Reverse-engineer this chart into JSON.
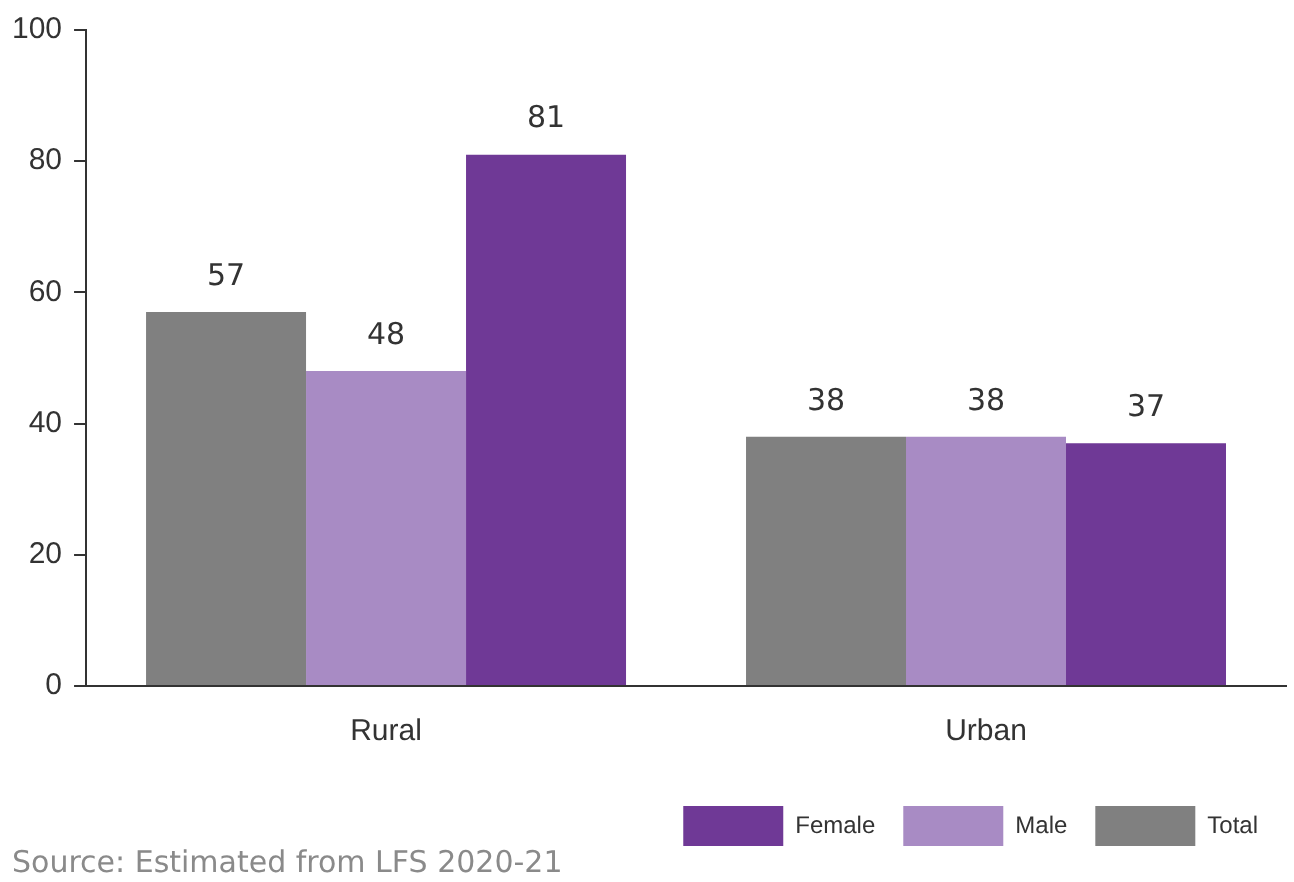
{
  "chart_data": {
    "type": "bar",
    "categories": [
      "Rural",
      "Urban"
    ],
    "series": [
      {
        "name": "Total",
        "color": "#808080",
        "values": [
          57,
          38
        ]
      },
      {
        "name": "Male",
        "color": "#a88bc4",
        "values": [
          48,
          38
        ]
      },
      {
        "name": "Female",
        "color": "#6f3996",
        "values": [
          81,
          37
        ]
      }
    ],
    "ylim": [
      0,
      100
    ],
    "yticks": [
      0,
      20,
      40,
      60,
      80,
      100
    ],
    "grid": false,
    "legend": "bottom right",
    "data_labels": true,
    "annotations": [
      "Source: Estimated from LFS 2020-21"
    ]
  }
}
